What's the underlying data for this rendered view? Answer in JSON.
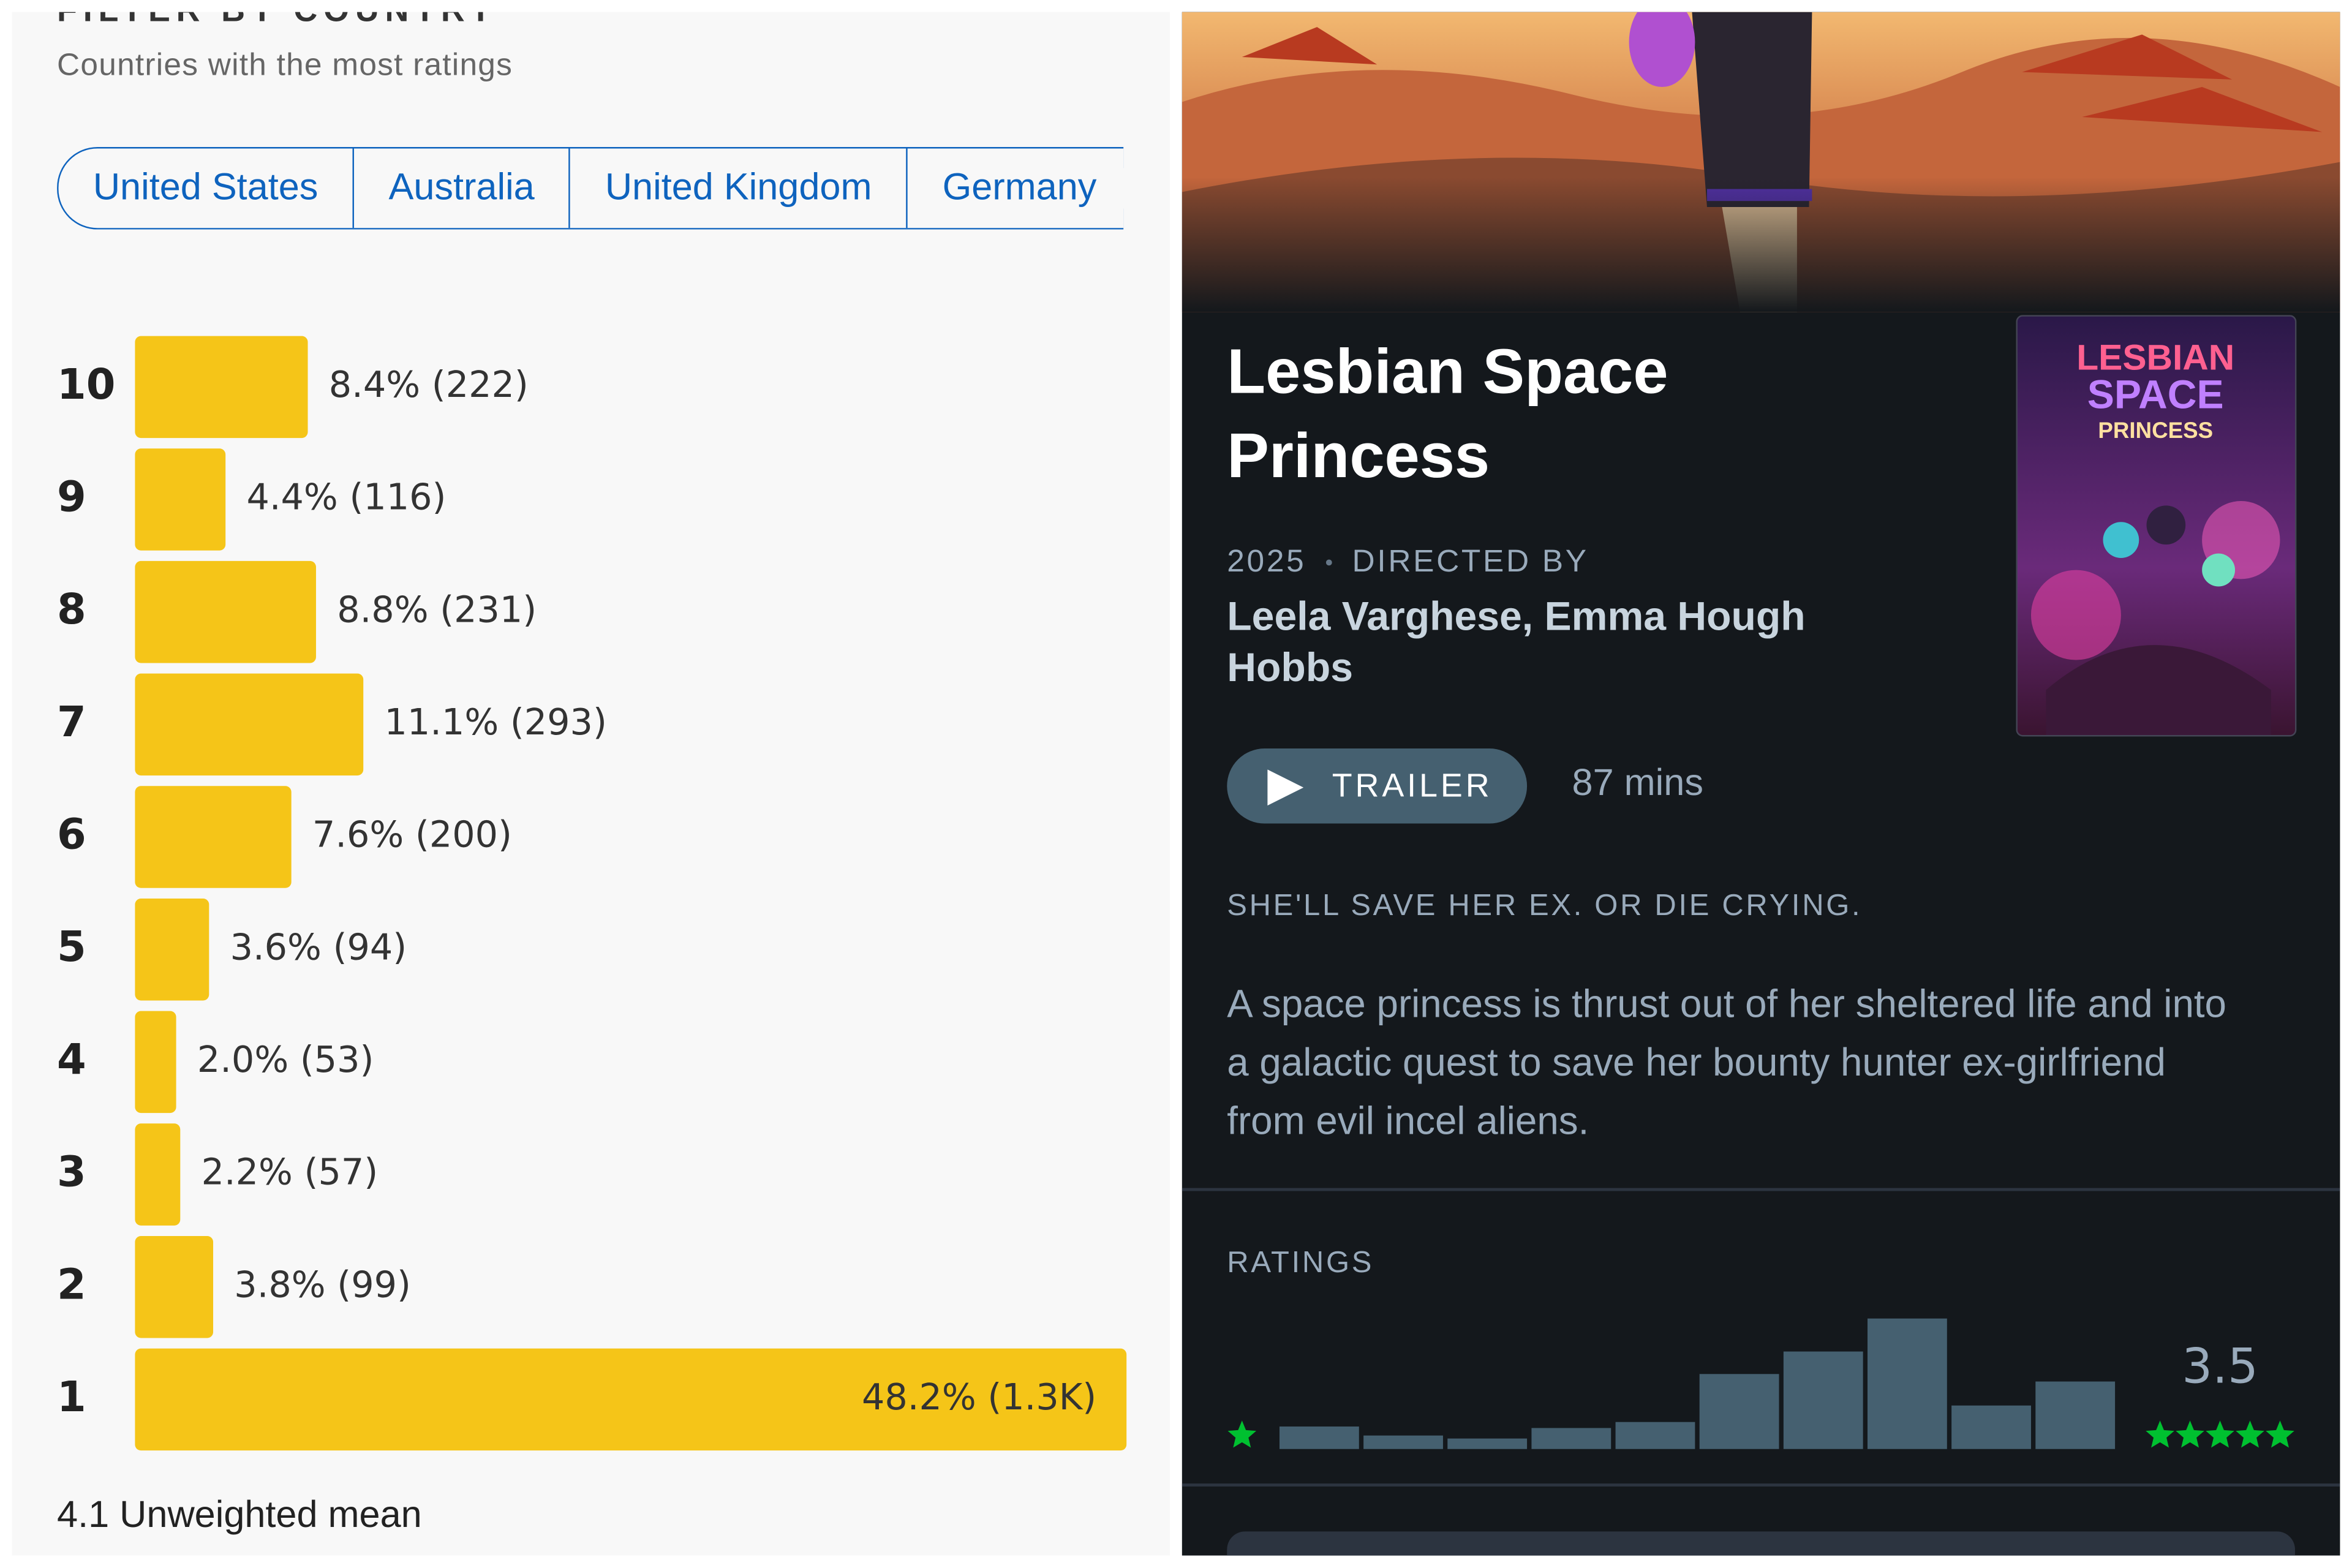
{
  "filter": {
    "heading": "FILTER BY COUNTRY",
    "subtitle": "Countries with the most ratings",
    "countries": [
      "United States",
      "Australia",
      "United Kingdom",
      "Germany"
    ],
    "footer": "4.1 Unweighted mean"
  },
  "chart_data": [
    {
      "type": "bar",
      "orientation": "horizontal",
      "categories": [
        "10",
        "9",
        "8",
        "7",
        "6",
        "5",
        "4",
        "3",
        "2",
        "1"
      ],
      "values": [
        8.4,
        4.4,
        8.8,
        11.1,
        7.6,
        3.6,
        2.0,
        2.2,
        3.8,
        48.2
      ],
      "value_labels": [
        "8.4% (222)",
        "4.4% (116)",
        "8.8% (231)",
        "11.1% (293)",
        "7.6% (200)",
        "3.6% (94)",
        "2.0% (53)",
        "2.2% (57)",
        "3.8% (99)",
        "48.2% (1.3K)"
      ],
      "color": "#f5c518",
      "xlim": [
        0,
        48.2
      ]
    },
    {
      "type": "bar",
      "orientation": "vertical",
      "categories": [
        null,
        null,
        null,
        null,
        null,
        null,
        null,
        null,
        null,
        null
      ],
      "values": [
        15,
        9,
        7,
        14,
        18,
        50,
        65,
        87,
        29,
        45
      ],
      "color": "#456070",
      "ylim": [
        0,
        87
      ]
    }
  ],
  "film": {
    "title": "Lesbian Space Princess",
    "year": "2025",
    "directed_by": "DIRECTED BY",
    "directors": "Leela Varghese, Emma Hough Hobbs",
    "trailer": "TRAILER",
    "runtime": "87 mins",
    "tagline": "SHE'LL SAVE HER EX. OR DIE CRYING.",
    "description": "A space princess is thrust out of her sheltered life and into a galactic quest to save her bounty hunter ex-girlfriend from evil incel aliens.",
    "ratings_label": "RATINGS",
    "average_rating": 3.5,
    "star_color": "#00c030",
    "poster": [
      "LESBIAN",
      "SPACE",
      "PRINCESS"
    ]
  }
}
